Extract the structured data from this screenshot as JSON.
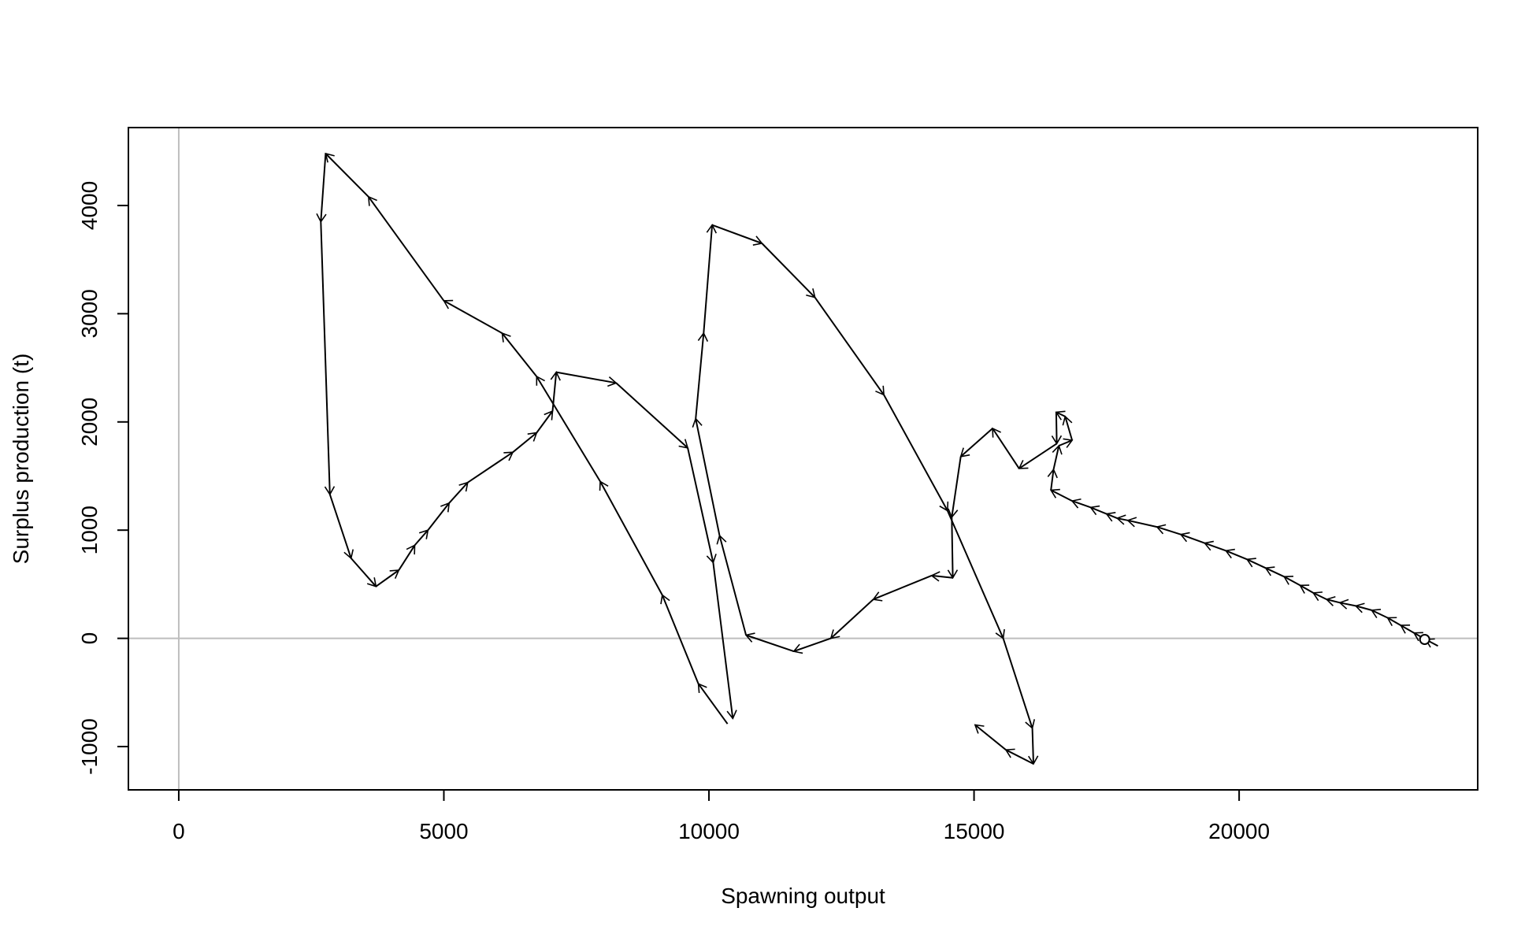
{
  "chart_data": {
    "type": "line",
    "title": "",
    "xlabel": "Spawning output",
    "ylabel": "Surplus production (t)",
    "xlim": [
      -950,
      24500
    ],
    "ylim": [
      -1400,
      4720
    ],
    "x_ticks": [
      0,
      5000,
      10000,
      15000,
      20000
    ],
    "x_tick_labels": [
      "0",
      "5000",
      "10000",
      "15000",
      "20000"
    ],
    "y_ticks": [
      -1000,
      0,
      1000,
      2000,
      3000,
      4000
    ],
    "y_tick_labels": [
      "-1000",
      "0",
      "1000",
      "2000",
      "3000",
      "4000"
    ],
    "reference_lines": {
      "x": 0,
      "y": 0,
      "color": "#bebebe"
    },
    "line_color": "#000000",
    "arrows": true,
    "end_marker": "open-circle",
    "series": [
      {
        "points": [
          [
            23750,
            -70
          ],
          [
            23520,
            -10
          ],
          [
            23300,
            50
          ],
          [
            23050,
            120
          ],
          [
            22800,
            190
          ],
          [
            22500,
            260
          ],
          [
            22200,
            300
          ],
          [
            21900,
            330
          ],
          [
            21650,
            360
          ],
          [
            21400,
            420
          ],
          [
            21150,
            490
          ],
          [
            20850,
            570
          ],
          [
            20500,
            650
          ],
          [
            20150,
            730
          ],
          [
            19750,
            810
          ],
          [
            19350,
            880
          ],
          [
            18900,
            960
          ],
          [
            18450,
            1030
          ],
          [
            17900,
            1090
          ],
          [
            17700,
            1110
          ],
          [
            17500,
            1150
          ],
          [
            17200,
            1210
          ],
          [
            16850,
            1270
          ],
          [
            16450,
            1370
          ],
          [
            16500,
            1560
          ],
          [
            16600,
            1780
          ],
          [
            16850,
            1830
          ],
          [
            16720,
            2050
          ],
          [
            16550,
            2090
          ],
          [
            16560,
            1800
          ],
          [
            15850,
            1570
          ],
          [
            15350,
            1940
          ],
          [
            14750,
            1680
          ],
          [
            14580,
            1120
          ],
          [
            14600,
            560
          ],
          [
            14200,
            580
          ],
          [
            13100,
            360
          ],
          [
            12300,
            0
          ],
          [
            11600,
            -120
          ],
          [
            10700,
            30
          ],
          [
            10200,
            950
          ],
          [
            9750,
            2030
          ],
          [
            9900,
            2820
          ],
          [
            10060,
            3820
          ],
          [
            11000,
            3650
          ],
          [
            12000,
            3150
          ],
          [
            13300,
            2250
          ],
          [
            14500,
            1180
          ],
          [
            15550,
            0
          ],
          [
            16100,
            -830
          ],
          [
            16120,
            -1160
          ],
          [
            15600,
            -1030
          ],
          [
            15020,
            -800
          ]
        ]
      },
      {
        "points": [
          [
            10350,
            -790
          ],
          [
            9800,
            -420
          ],
          [
            9120,
            400
          ],
          [
            7950,
            1450
          ],
          [
            6750,
            2420
          ],
          [
            6100,
            2820
          ],
          [
            5000,
            3120
          ],
          [
            3580,
            4080
          ],
          [
            2770,
            4480
          ],
          [
            2680,
            3850
          ],
          [
            2850,
            1330
          ],
          [
            3250,
            740
          ],
          [
            3720,
            480
          ],
          [
            4150,
            630
          ],
          [
            4450,
            860
          ],
          [
            4700,
            1000
          ],
          [
            5100,
            1250
          ],
          [
            5450,
            1440
          ],
          [
            6300,
            1720
          ],
          [
            6750,
            1900
          ],
          [
            7050,
            2100
          ],
          [
            7120,
            2460
          ],
          [
            8250,
            2360
          ],
          [
            9600,
            1760
          ],
          [
            10080,
            700
          ],
          [
            10450,
            -740
          ]
        ]
      }
    ],
    "end_point": [
      23500,
      -10
    ]
  }
}
